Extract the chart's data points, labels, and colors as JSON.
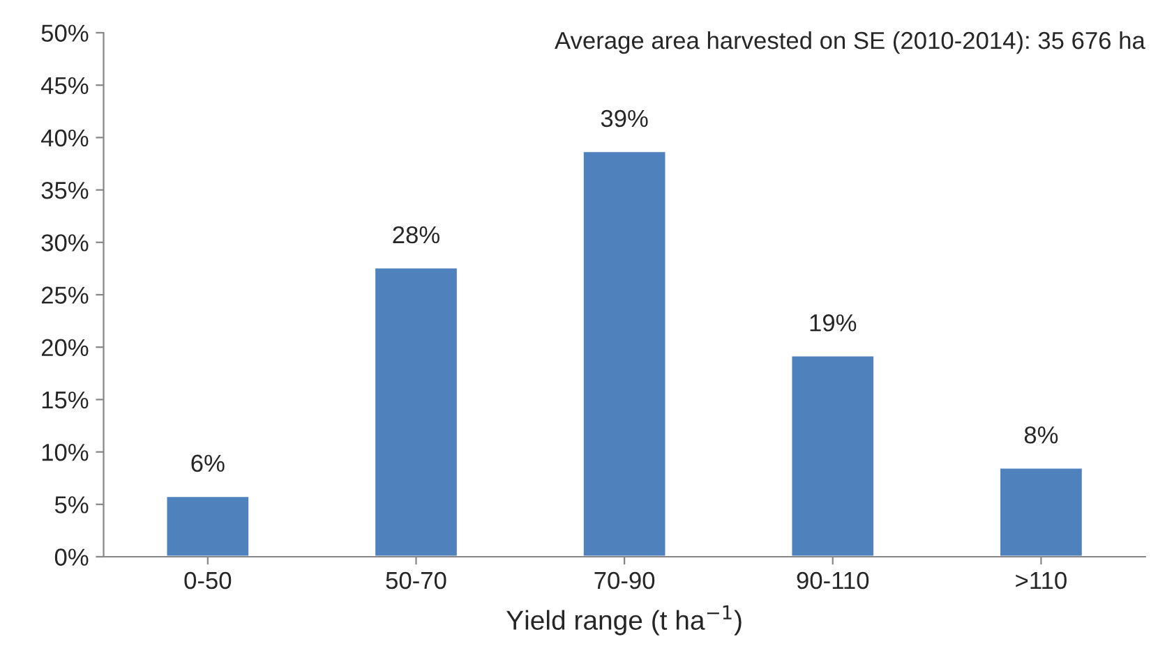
{
  "chart_data": {
    "type": "bar",
    "xlabel": "Yield range (t ha$^{−1}$)",
    "categories": [
      "0-50",
      "50-70",
      "70-90",
      "90-110",
      ">110"
    ],
    "values": [
      5.8,
      27.6,
      38.7,
      19.2,
      8.5
    ],
    "value_labels": [
      "6%",
      "28%",
      "39%",
      "19%",
      "8%"
    ],
    "color": "#4f81bd",
    "ylim": [
      0,
      50
    ],
    "yticks": [
      {
        "value": 0,
        "label": "0%"
      },
      {
        "value": 5,
        "label": "5%"
      },
      {
        "value": 10,
        "label": "10%"
      },
      {
        "value": 15,
        "label": "15%"
      },
      {
        "value": 20,
        "label": "20%"
      },
      {
        "value": 25,
        "label": "25%"
      },
      {
        "value": 30,
        "label": "30%"
      },
      {
        "value": 35,
        "label": "35%"
      },
      {
        "value": 40,
        "label": "40%"
      },
      {
        "value": 45,
        "label": "45%"
      },
      {
        "value": 50,
        "label": "50%"
      }
    ],
    "annotations": [
      "Average area harvested on SE (2010-2014): 35 676 ha"
    ],
    "grid": false,
    "legend": false
  }
}
